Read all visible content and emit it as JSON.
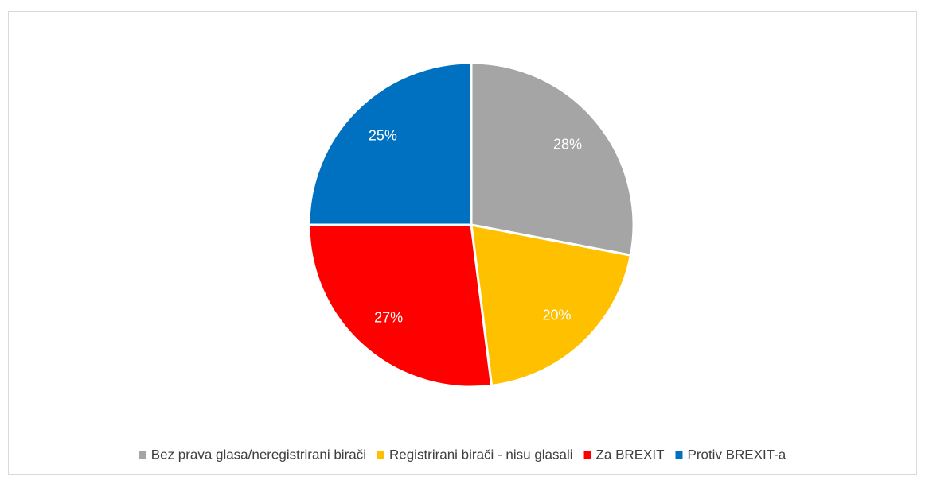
{
  "chart_data": {
    "type": "pie",
    "categories": [
      "Bez prava glasa/neregistrirani birači",
      "Registrirani birači - nisu glasali",
      "Za BREXIT",
      "Protiv BREXIT-a"
    ],
    "values": [
      28,
      20,
      27,
      25
    ],
    "value_labels": [
      "28%",
      "20%",
      "27%",
      "25%"
    ],
    "colors": [
      "#a5a5a5",
      "#ffc000",
      "#ff0000",
      "#0070c0"
    ],
    "legend": "bottom"
  }
}
